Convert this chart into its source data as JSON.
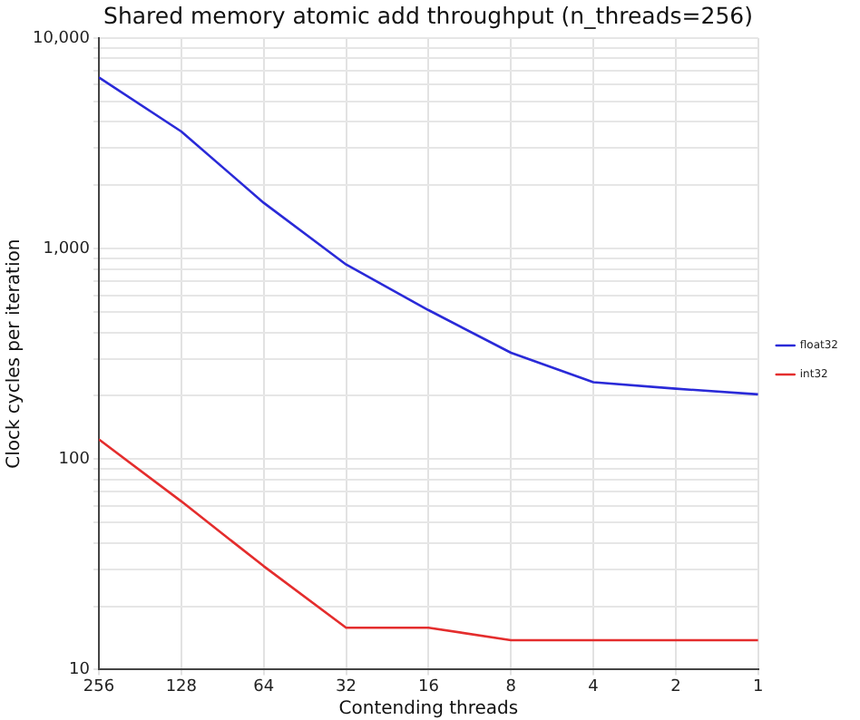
{
  "chart_data": {
    "type": "line",
    "title": "Shared memory atomic add throughput (n_threads=256)",
    "xlabel": "Contending threads",
    "ylabel": "Clock cycles per iteration",
    "x": [
      256,
      128,
      64,
      32,
      16,
      8,
      4,
      2,
      1
    ],
    "series": [
      {
        "name": "float32",
        "color": "#2a2ad8",
        "values": [
          6500,
          3600,
          1650,
          840,
          510,
          320,
          232,
          216,
          203
        ]
      },
      {
        "name": "int32",
        "color": "#e42d2d",
        "values": [
          124,
          63,
          31,
          15.8,
          15.8,
          13.8,
          13.8,
          13.8,
          13.8
        ]
      }
    ],
    "log": "xy",
    "xlim": [
      256,
      1
    ],
    "xticks": [
      256,
      128,
      64,
      32,
      16,
      8,
      4,
      2,
      1
    ],
    "ylim": [
      10,
      10000
    ],
    "yticks": [
      {
        "value": 10,
        "label": "10"
      },
      {
        "value": 20,
        "label": null
      },
      {
        "value": 30,
        "label": null
      },
      {
        "value": 40,
        "label": null
      },
      {
        "value": 50,
        "label": null
      },
      {
        "value": 60,
        "label": null
      },
      {
        "value": 70,
        "label": null
      },
      {
        "value": 80,
        "label": null
      },
      {
        "value": 90,
        "label": null
      },
      {
        "value": 100,
        "label": "100"
      },
      {
        "value": 200,
        "label": null
      },
      {
        "value": 300,
        "label": null
      },
      {
        "value": 400,
        "label": null
      },
      {
        "value": 500,
        "label": null
      },
      {
        "value": 600,
        "label": null
      },
      {
        "value": 700,
        "label": null
      },
      {
        "value": 800,
        "label": null
      },
      {
        "value": 900,
        "label": null
      },
      {
        "value": 1000,
        "label": "1,000"
      },
      {
        "value": 2000,
        "label": null
      },
      {
        "value": 3000,
        "label": null
      },
      {
        "value": 4000,
        "label": null
      },
      {
        "value": 5000,
        "label": null
      },
      {
        "value": 6000,
        "label": null
      },
      {
        "value": 7000,
        "label": null
      },
      {
        "value": 8000,
        "label": null
      },
      {
        "value": 9000,
        "label": null
      },
      {
        "value": 10000,
        "label": "10,000"
      }
    ],
    "grid": true,
    "legend": "right",
    "marker": "none",
    "line_style": "solid"
  }
}
